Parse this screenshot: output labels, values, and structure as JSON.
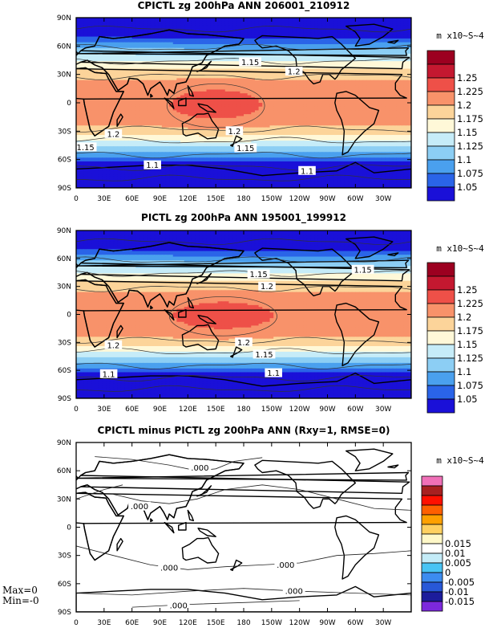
{
  "chart_data": [
    {
      "type": "heatmap",
      "title": "CPICTL zg 200hPa ANN 206001_210912",
      "units": "m x10~S~4",
      "x_ticks": [
        "0",
        "30E",
        "60E",
        "90E",
        "120E",
        "150E",
        "180",
        "150W",
        "120W",
        "90W",
        "60W",
        "30W"
      ],
      "y_ticks": [
        "90N",
        "60N",
        "30N",
        "0",
        "30S",
        "60S",
        "90S"
      ],
      "legend_colors": [
        "#1a10d8",
        "#2a64e8",
        "#4aa0ee",
        "#8ccef4",
        "#c6ecf8",
        "#fff8d8",
        "#fcd49a",
        "#f8926a",
        "#ee5048",
        "#c41830",
        "#9c0020"
      ],
      "legend_labels": [
        "1.05",
        "1.075",
        "1.1",
        "1.125",
        "1.15",
        "1.175",
        "1.2",
        "1.225",
        "1.25"
      ],
      "contour_labels": [
        {
          "text": "1.15",
          "lon": 187,
          "lat": 43
        },
        {
          "text": "1.2",
          "lon": 234,
          "lat": 33
        },
        {
          "text": "1.2",
          "lon": 40,
          "lat": -33
        },
        {
          "text": "1.2",
          "lon": 170,
          "lat": -30
        },
        {
          "text": "1.15",
          "lon": 10,
          "lat": -47
        },
        {
          "text": "1.15",
          "lon": 182,
          "lat": -48
        },
        {
          "text": "1.1",
          "lon": 82,
          "lat": -66
        },
        {
          "text": "1.1",
          "lon": 248,
          "lat": -72
        }
      ],
      "hot_center": [
        150,
        -3
      ],
      "hot_radius": [
        50,
        22
      ]
    },
    {
      "type": "heatmap",
      "title": "PICTL zg 200hPa ANN 195001_199912",
      "units": "m x10~S~4",
      "x_ticks": [
        "0",
        "30E",
        "60E",
        "90E",
        "120E",
        "150E",
        "180",
        "150W",
        "120W",
        "90W",
        "60W",
        "30W"
      ],
      "y_ticks": [
        "90N",
        "60N",
        "30N",
        "0",
        "30S",
        "60S",
        "90S"
      ],
      "legend_colors": [
        "#1a10d8",
        "#2a64e8",
        "#4aa0ee",
        "#8ccef4",
        "#c6ecf8",
        "#fff8d8",
        "#fcd49a",
        "#f8926a",
        "#ee5048",
        "#c41830",
        "#9c0020"
      ],
      "legend_labels": [
        "1.05",
        "1.075",
        "1.1",
        "1.125",
        "1.15",
        "1.175",
        "1.2",
        "1.225",
        "1.25"
      ],
      "contour_labels": [
        {
          "text": "1.15",
          "lon": 196,
          "lat": 43
        },
        {
          "text": "1.15",
          "lon": 308,
          "lat": 48
        },
        {
          "text": "1.2",
          "lon": 205,
          "lat": 30
        },
        {
          "text": "1.2",
          "lon": 40,
          "lat": -33
        },
        {
          "text": "1.2",
          "lon": 180,
          "lat": -30
        },
        {
          "text": "1.15",
          "lon": 202,
          "lat": -43
        },
        {
          "text": "1.1",
          "lon": 35,
          "lat": -64
        },
        {
          "text": "1.1",
          "lon": 212,
          "lat": -63
        }
      ],
      "hot_center": [
        158,
        -2
      ],
      "hot_radius": [
        55,
        20
      ]
    },
    {
      "type": "heatmap",
      "title": "CPICTL minus PICTL zg 200hPa ANN (Rxy=1, RMSE=0)",
      "units": "m x10~S~4",
      "x_ticks": [
        "0",
        "30E",
        "60E",
        "90E",
        "120E",
        "150E",
        "180",
        "150W",
        "120W",
        "90W",
        "60W",
        "30W"
      ],
      "y_ticks": [
        "90N",
        "60N",
        "30N",
        "0",
        "30S",
        "60S",
        "90S"
      ],
      "legend_colors": [
        "#7c28dc",
        "#1c1c9c",
        "#2858d8",
        "#3c8cf0",
        "#48c4f4",
        "#c4ecf8",
        "#ffffff",
        "#fff8c8",
        "#ffd060",
        "#ffa000",
        "#ff6000",
        "#ff1000",
        "#a82020",
        "#f070b8"
      ],
      "legend_labels": [
        "-0.015",
        "-0.01",
        "-0.005",
        "0",
        "0.005",
        "0.01",
        "0.015"
      ],
      "contour_labels": [
        {
          "text": ".000",
          "lon": 133,
          "lat": 63
        },
        {
          "text": ".000",
          "lon": 68,
          "lat": 22
        },
        {
          "text": ".000",
          "lon": 100,
          "lat": -43
        },
        {
          "text": ".000",
          "lon": 225,
          "lat": -40
        },
        {
          "text": ".000",
          "lon": 234,
          "lat": -68
        },
        {
          "text": ".000",
          "lon": 110,
          "lat": -83
        }
      ],
      "min_max": [
        "Max=0",
        "Min=-0"
      ]
    }
  ]
}
